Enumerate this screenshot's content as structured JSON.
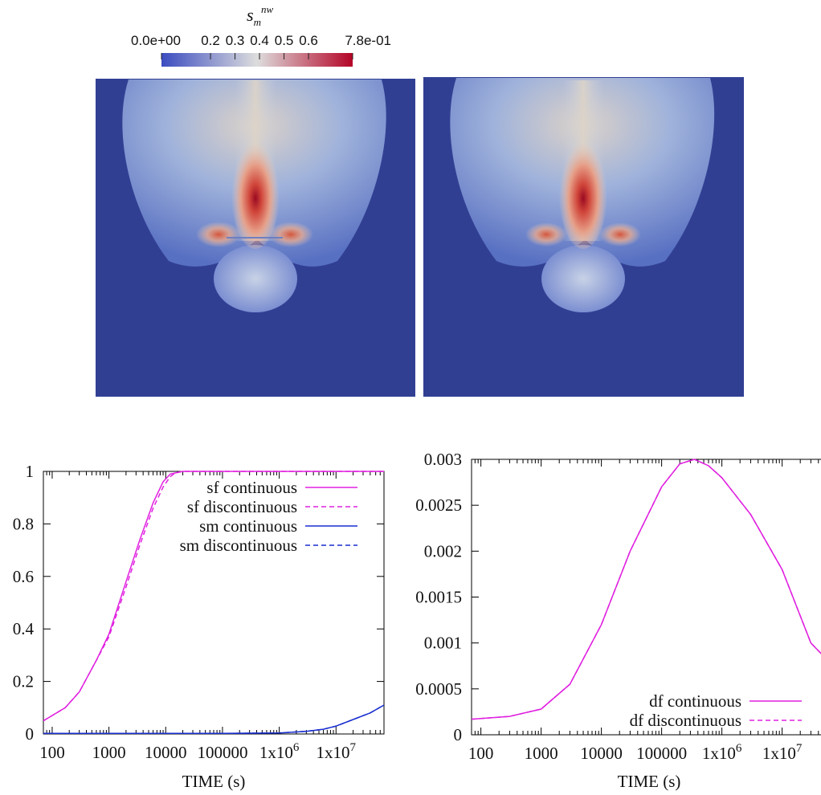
{
  "colorbar": {
    "title": "s",
    "title_sub": "m",
    "title_sup": "nw",
    "tick_labels": [
      "0.0e+00",
      "0.2",
      "0.3",
      "0.4",
      "0.5",
      "0.6",
      "7.8e-01"
    ],
    "tick_values": [
      0.0,
      0.2,
      0.3,
      0.4,
      0.5,
      0.6,
      0.78
    ],
    "range": [
      0.0,
      0.78
    ],
    "colormap": [
      "#3b4cc0",
      "#dddddd",
      "#b40426"
    ],
    "background_color": "#313f93"
  },
  "chart_data": [
    {
      "type": "line",
      "xscale": "log",
      "xlim": [
        70,
        70000000
      ],
      "ylim": [
        0,
        1
      ],
      "xlabel": "TIME (s)",
      "ylabel": "",
      "x_tick_labels": [
        "100",
        "1000",
        "10000",
        "100000",
        "1x10",
        "1x10"
      ],
      "x_tick_exps": [
        "",
        "",
        "",
        "",
        "6",
        "7"
      ],
      "x_tick_values": [
        100,
        1000,
        10000,
        100000,
        1000000,
        10000000
      ],
      "y_tick_labels": [
        "0",
        "0.2",
        "0.4",
        "0.6",
        "0.8",
        "1"
      ],
      "y_tick_values": [
        0,
        0.2,
        0.4,
        0.6,
        0.8,
        1
      ],
      "grid": false,
      "legend": "top-right",
      "series": [
        {
          "name": "sf continuous",
          "color": "#e020e0",
          "dash": "solid",
          "x": [
            70,
            170,
            300,
            600,
            1000,
            2000,
            3500,
            6000,
            9000,
            12000,
            20000,
            100000,
            1000000,
            10000000,
            70000000
          ],
          "y": [
            0.05,
            0.1,
            0.16,
            0.28,
            0.38,
            0.58,
            0.74,
            0.88,
            0.96,
            0.99,
            1.0,
            1.0,
            1.0,
            1.0,
            1.0
          ]
        },
        {
          "name": "sf discontinuous",
          "color": "#e020e0",
          "dash": "dashed",
          "x": [
            70,
            170,
            300,
            600,
            1000,
            2000,
            3500,
            6000,
            9000,
            12000,
            15000,
            20000,
            100000,
            1000000,
            10000000,
            70000000
          ],
          "y": [
            0.05,
            0.1,
            0.16,
            0.28,
            0.37,
            0.56,
            0.72,
            0.86,
            0.94,
            0.98,
            0.995,
            1.0,
            1.0,
            1.0,
            1.0,
            1.0
          ]
        },
        {
          "name": "sm continuous",
          "color": "#1a2fd0",
          "dash": "solid",
          "x": [
            70,
            100000,
            1000000,
            3000000,
            6000000,
            10000000,
            20000000,
            40000000,
            70000000
          ],
          "y": [
            0.002,
            0.002,
            0.004,
            0.01,
            0.018,
            0.03,
            0.055,
            0.08,
            0.11
          ]
        },
        {
          "name": "sm discontinuous",
          "color": "#1a2fd0",
          "dash": "dashed",
          "x": [
            70,
            100000,
            1000000,
            3000000,
            6000000,
            10000000,
            20000000,
            40000000,
            70000000
          ],
          "y": [
            0.002,
            0.002,
            0.004,
            0.01,
            0.018,
            0.03,
            0.055,
            0.08,
            0.11
          ]
        }
      ]
    },
    {
      "type": "line",
      "xscale": "log",
      "xlim": [
        70,
        70000000
      ],
      "ylim": [
        0,
        0.003
      ],
      "xlabel": "TIME (s)",
      "ylabel": "",
      "x_tick_labels": [
        "100",
        "1000",
        "10000",
        "100000",
        "1x10",
        "1x10"
      ],
      "x_tick_exps": [
        "",
        "",
        "",
        "",
        "6",
        "7"
      ],
      "x_tick_values": [
        100,
        1000,
        10000,
        100000,
        1000000,
        10000000
      ],
      "y_tick_labels": [
        "0",
        "0.0005",
        "0.001",
        "0.0015",
        "0.002",
        "0.0025",
        "0.003"
      ],
      "y_tick_values": [
        0,
        0.0005,
        0.001,
        0.0015,
        0.002,
        0.0025,
        0.003
      ],
      "grid": false,
      "legend": "bottom-right",
      "series": [
        {
          "name": "df continuous",
          "color": "#e020e0",
          "dash": "solid",
          "x": [
            70,
            300,
            1000,
            3000,
            10000,
            30000,
            100000,
            200000,
            350000,
            600000,
            1000000,
            3000000,
            10000000,
            30000000,
            70000000
          ],
          "y": [
            0.00017,
            0.0002,
            0.00028,
            0.00055,
            0.0012,
            0.002,
            0.0027,
            0.00295,
            0.003,
            0.00293,
            0.0028,
            0.0024,
            0.0018,
            0.001,
            0.00075
          ]
        },
        {
          "name": "df discontinuous",
          "color": "#e020e0",
          "dash": "dashed",
          "x": [
            70,
            300,
            1000,
            3000,
            10000,
            30000,
            100000,
            200000,
            350000,
            600000,
            1000000,
            3000000,
            10000000,
            30000000,
            70000000
          ],
          "y": [
            0.00017,
            0.0002,
            0.00028,
            0.00055,
            0.0012,
            0.002,
            0.0027,
            0.00295,
            0.003,
            0.00293,
            0.0028,
            0.0024,
            0.0018,
            0.001,
            0.00075
          ]
        }
      ]
    }
  ]
}
